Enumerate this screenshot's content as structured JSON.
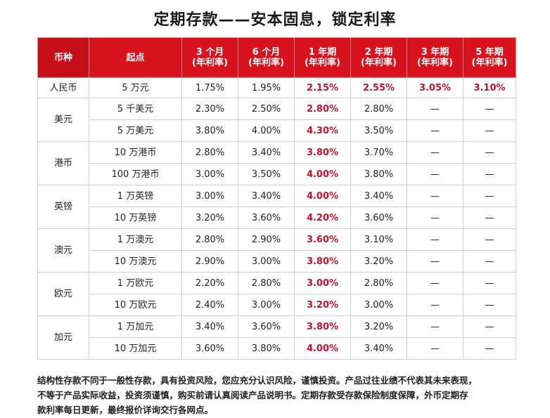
{
  "title": "定期存款——安本固息，锁定利率",
  "headers": {
    "currency": "币种",
    "minimum": "起点",
    "m3": [
      "3 个月",
      "(年利率)"
    ],
    "m6": [
      "6 个月",
      "(年利率)"
    ],
    "y1": [
      "1 年期",
      "(年利率)"
    ],
    "y2": [
      "2 年期",
      "(年利率)"
    ],
    "y3": [
      "3 年期",
      "(年利率)"
    ],
    "y5": [
      "5 年期",
      "(年利率)"
    ]
  },
  "groups": [
    {
      "currency": "人民币",
      "rows": [
        {
          "minimum": "5 万元",
          "m3": "1.75%",
          "m6": "1.95%",
          "y1": "2.15%",
          "y2": "2.55%",
          "y3": "3.05%",
          "y5": "3.10%"
        }
      ]
    },
    {
      "currency": "美元",
      "rows": [
        {
          "minimum": "5 千美元",
          "m3": "2.30%",
          "m6": "2.50%",
          "y1": "2.80%",
          "y2": "2.80%",
          "y3": "—",
          "y5": "—"
        },
        {
          "minimum": "5 万美元",
          "m3": "3.80%",
          "m6": "4.00%",
          "y1": "4.30%",
          "y2": "3.50%",
          "y3": "—",
          "y5": "—"
        }
      ]
    },
    {
      "currency": "港币",
      "rows": [
        {
          "minimum": "10 万港币",
          "m3": "2.80%",
          "m6": "3.40%",
          "y1": "3.80%",
          "y2": "3.70%",
          "y3": "—",
          "y5": "—"
        },
        {
          "minimum": "100 万港币",
          "m3": "3.00%",
          "m6": "3.50%",
          "y1": "4.00%",
          "y2": "3.80%",
          "y3": "—",
          "y5": "—"
        }
      ]
    },
    {
      "currency": "英镑",
      "rows": [
        {
          "minimum": "1 万英镑",
          "m3": "3.00%",
          "m6": "3.40%",
          "y1": "4.00%",
          "y2": "3.40%",
          "y3": "—",
          "y5": "—"
        },
        {
          "minimum": "10 万英镑",
          "m3": "3.20%",
          "m6": "3.60%",
          "y1": "4.20%",
          "y2": "3.60%",
          "y3": "—",
          "y5": "—"
        }
      ]
    },
    {
      "currency": "澳元",
      "rows": [
        {
          "minimum": "1 万澳元",
          "m3": "2.80%",
          "m6": "2.90%",
          "y1": "3.60%",
          "y2": "3.10%",
          "y3": "—",
          "y5": "—"
        },
        {
          "minimum": "10 万澳元",
          "m3": "2.90%",
          "m6": "3.00%",
          "y1": "3.80%",
          "y2": "3.20%",
          "y3": "—",
          "y5": "—"
        }
      ]
    },
    {
      "currency": "欧元",
      "rows": [
        {
          "minimum": "1 万欧元",
          "m3": "2.20%",
          "m6": "2.80%",
          "y1": "3.00%",
          "y2": "2.80%",
          "y3": "—",
          "y5": "—"
        },
        {
          "minimum": "10 万欧元",
          "m3": "2.40%",
          "m6": "3.00%",
          "y1": "3.20%",
          "y2": "3.00%",
          "y3": "—",
          "y5": "—"
        }
      ]
    },
    {
      "currency": "加元",
      "rows": [
        {
          "minimum": "1 万加元",
          "m3": "3.40%",
          "m6": "3.60%",
          "y1": "3.80%",
          "y2": "3.20%",
          "y3": "—",
          "y5": "—"
        },
        {
          "minimum": "10 万加元",
          "m3": "3.60%",
          "m6": "3.80%",
          "y1": "4.00%",
          "y2": "3.40%",
          "y3": "—",
          "y5": "—"
        }
      ]
    }
  ],
  "footnote": [
    "结构性存款不同于一般性存款，具有投资风险，您应充分认识风险，谨慎投资。产品过往业绩不代表其未来表现，",
    "不等于产品实际收益，投资须谨慎，购买前请认真阅读产品说明书。定期存款受存款保险制度保障，外币定期存",
    "款利率每日更新，最终报价详询交行各网点。"
  ],
  "colors": {
    "header_bg": "#d8131d",
    "highlight_text": "#c8102e"
  }
}
